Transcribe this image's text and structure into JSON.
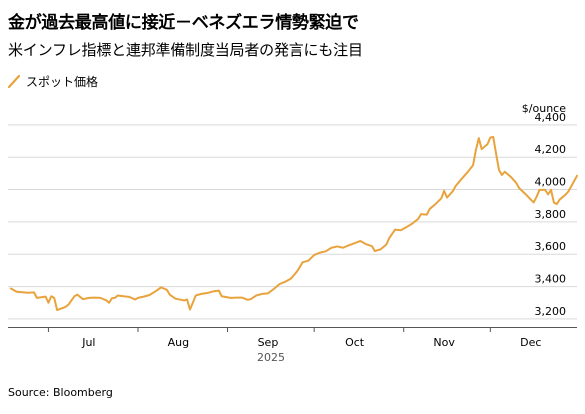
{
  "title": "金が過去最高値に接近－ベネズエラ情勢緊迫で",
  "subtitle": "米インフレ指標と連邦準備制度当局者の発言にも注目",
  "source": "Source: Bloomberg",
  "chart_data": {
    "type": "line",
    "unit_label": "$/ounce",
    "ylim": [
      3150,
      4430
    ],
    "yticks": [
      3200,
      3400,
      3600,
      3800,
      4000,
      4200,
      4400
    ],
    "ytick_labels": [
      "3,200",
      "3,400",
      "3,600",
      "3,800",
      "4,000",
      "4,200",
      "4,400"
    ],
    "grid": true,
    "xlim": [
      "2025-06-17",
      "2025-12-31"
    ],
    "xticks": [
      {
        "label": "Jul",
        "date": "2025-07-15"
      },
      {
        "label": "Aug",
        "date": "2025-08-15"
      },
      {
        "label": "Sep",
        "date": "2025-09-15"
      },
      {
        "label": "Oct",
        "date": "2025-10-15"
      },
      {
        "label": "Nov",
        "date": "2025-11-15"
      },
      {
        "label": "Dec",
        "date": "2025-12-15"
      }
    ],
    "year_label": "2025",
    "series": [
      {
        "name": "スポット価格",
        "color": "#E8A33D",
        "points": [
          [
            "2025-06-18",
            3388
          ],
          [
            "2025-06-20",
            3368
          ],
          [
            "2025-06-24",
            3362
          ],
          [
            "2025-06-26",
            3364
          ],
          [
            "2025-06-27",
            3330
          ],
          [
            "2025-06-30",
            3338
          ],
          [
            "2025-07-01",
            3300
          ],
          [
            "2025-07-02",
            3340
          ],
          [
            "2025-07-03",
            3330
          ],
          [
            "2025-07-04",
            3255
          ],
          [
            "2025-07-07",
            3275
          ],
          [
            "2025-07-08",
            3290
          ],
          [
            "2025-07-09",
            3315
          ],
          [
            "2025-07-10",
            3340
          ],
          [
            "2025-07-11",
            3350
          ],
          [
            "2025-07-13",
            3322
          ],
          [
            "2025-07-15",
            3330
          ],
          [
            "2025-07-17",
            3332
          ],
          [
            "2025-07-19",
            3330
          ],
          [
            "2025-07-21",
            3315
          ],
          [
            "2025-07-22",
            3300
          ],
          [
            "2025-07-23",
            3328
          ],
          [
            "2025-07-24",
            3330
          ],
          [
            "2025-07-25",
            3345
          ],
          [
            "2025-07-27",
            3340
          ],
          [
            "2025-07-29",
            3336
          ],
          [
            "2025-07-31",
            3320
          ],
          [
            "2025-08-01",
            3330
          ],
          [
            "2025-08-03",
            3338
          ],
          [
            "2025-08-05",
            3348
          ],
          [
            "2025-08-07",
            3370
          ],
          [
            "2025-08-09",
            3395
          ],
          [
            "2025-08-11",
            3380
          ],
          [
            "2025-08-12",
            3350
          ],
          [
            "2025-08-14",
            3325
          ],
          [
            "2025-08-16",
            3318
          ],
          [
            "2025-08-17",
            3314
          ],
          [
            "2025-08-18",
            3320
          ],
          [
            "2025-08-19",
            3258
          ],
          [
            "2025-08-20",
            3300
          ],
          [
            "2025-08-21",
            3345
          ],
          [
            "2025-08-23",
            3355
          ],
          [
            "2025-08-25",
            3360
          ],
          [
            "2025-08-27",
            3370
          ],
          [
            "2025-08-29",
            3375
          ],
          [
            "2025-08-30",
            3340
          ],
          [
            "2025-09-02",
            3330
          ],
          [
            "2025-09-04",
            3332
          ],
          [
            "2025-09-06",
            3332
          ],
          [
            "2025-09-08",
            3318
          ],
          [
            "2025-09-09",
            3322
          ],
          [
            "2025-09-11",
            3345
          ],
          [
            "2025-09-13",
            3355
          ],
          [
            "2025-09-15",
            3358
          ],
          [
            "2025-09-17",
            3385
          ],
          [
            "2025-09-19",
            3415
          ],
          [
            "2025-09-21",
            3430
          ],
          [
            "2025-09-23",
            3450
          ],
          [
            "2025-09-25",
            3492
          ],
          [
            "2025-09-26",
            3520
          ],
          [
            "2025-09-27",
            3550
          ],
          [
            "2025-09-29",
            3560
          ],
          [
            "2025-10-01",
            3595
          ],
          [
            "2025-10-03",
            3610
          ],
          [
            "2025-10-05",
            3618
          ],
          [
            "2025-10-07",
            3640
          ],
          [
            "2025-10-09",
            3648
          ],
          [
            "2025-10-11",
            3640
          ],
          [
            "2025-10-13",
            3655
          ],
          [
            "2025-10-15",
            3668
          ],
          [
            "2025-10-17",
            3682
          ],
          [
            "2025-10-19",
            3662
          ],
          [
            "2025-10-21",
            3650
          ],
          [
            "2025-10-22",
            3620
          ],
          [
            "2025-10-24",
            3630
          ],
          [
            "2025-10-26",
            3660
          ],
          [
            "2025-10-27",
            3700
          ],
          [
            "2025-10-29",
            3752
          ],
          [
            "2025-10-31",
            3748
          ],
          [
            "2025-11-02",
            3768
          ],
          [
            "2025-11-04",
            3790
          ],
          [
            "2025-11-06",
            3818
          ],
          [
            "2025-11-07",
            3848
          ],
          [
            "2025-11-09",
            3845
          ],
          [
            "2025-11-10",
            3880
          ],
          [
            "2025-11-12",
            3910
          ],
          [
            "2025-11-14",
            3945
          ],
          [
            "2025-11-15",
            3992
          ],
          [
            "2025-11-16",
            3950
          ],
          [
            "2025-11-18",
            3990
          ],
          [
            "2025-11-19",
            4022
          ],
          [
            "2025-11-21",
            4065
          ],
          [
            "2025-11-23",
            4105
          ],
          [
            "2025-11-25",
            4150
          ],
          [
            "2025-11-26",
            4245
          ],
          [
            "2025-11-27",
            4318
          ],
          [
            "2025-11-28",
            4250
          ],
          [
            "2025-11-30",
            4280
          ],
          [
            "2025-12-01",
            4322
          ],
          [
            "2025-12-02",
            4325
          ],
          [
            "2025-12-03",
            4220
          ],
          [
            "2025-12-04",
            4120
          ],
          [
            "2025-12-05",
            4090
          ],
          [
            "2025-12-06",
            4110
          ],
          [
            "2025-12-08",
            4080
          ],
          [
            "2025-12-10",
            4040
          ],
          [
            "2025-12-11",
            4008
          ],
          [
            "2025-12-13",
            3975
          ],
          [
            "2025-12-15",
            3938
          ],
          [
            "2025-12-16",
            3920
          ],
          [
            "2025-12-17",
            3955
          ],
          [
            "2025-12-18",
            3998
          ],
          [
            "2025-12-20",
            3998
          ],
          [
            "2025-12-21",
            3970
          ],
          [
            "2025-12-22",
            3998
          ],
          [
            "2025-12-23",
            3920
          ],
          [
            "2025-12-24",
            3910
          ],
          [
            "2025-12-25",
            3938
          ],
          [
            "2025-12-27",
            3968
          ],
          [
            "2025-12-28",
            3988
          ],
          [
            "2025-12-30",
            4052
          ],
          [
            "2025-12-31",
            4085
          ]
        ]
      }
    ]
  }
}
